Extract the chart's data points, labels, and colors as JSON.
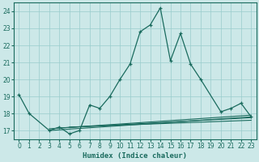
{
  "xlabel": "Humidex (Indice chaleur)",
  "background_color": "#cce8e8",
  "grid_color": "#99cccc",
  "line_color": "#1a6b5e",
  "xlim": [
    -0.5,
    23.5
  ],
  "ylim": [
    16.5,
    24.5
  ],
  "yticks": [
    17,
    18,
    19,
    20,
    21,
    22,
    23,
    24
  ],
  "xticks": [
    0,
    1,
    2,
    3,
    4,
    5,
    6,
    7,
    8,
    9,
    10,
    11,
    12,
    13,
    14,
    15,
    16,
    17,
    18,
    19,
    20,
    21,
    22,
    23
  ],
  "main_line_x": [
    0,
    1,
    3,
    4,
    5,
    6,
    7,
    8,
    9,
    10,
    11,
    12,
    13,
    14,
    15,
    16,
    17,
    18,
    20,
    21,
    22,
    23
  ],
  "main_line_y": [
    19.1,
    18.0,
    17.0,
    17.2,
    16.8,
    17.0,
    18.5,
    18.3,
    19.0,
    20.0,
    20.9,
    22.8,
    23.2,
    24.2,
    21.1,
    22.7,
    20.9,
    20.0,
    18.1,
    18.3,
    18.6,
    17.8
  ],
  "flat_lines": [
    [
      3,
      17.0,
      23,
      17.8
    ],
    [
      3,
      17.1,
      23,
      17.9
    ],
    [
      4,
      17.15,
      23,
      17.75
    ],
    [
      5,
      17.2,
      23,
      17.6
    ]
  ]
}
